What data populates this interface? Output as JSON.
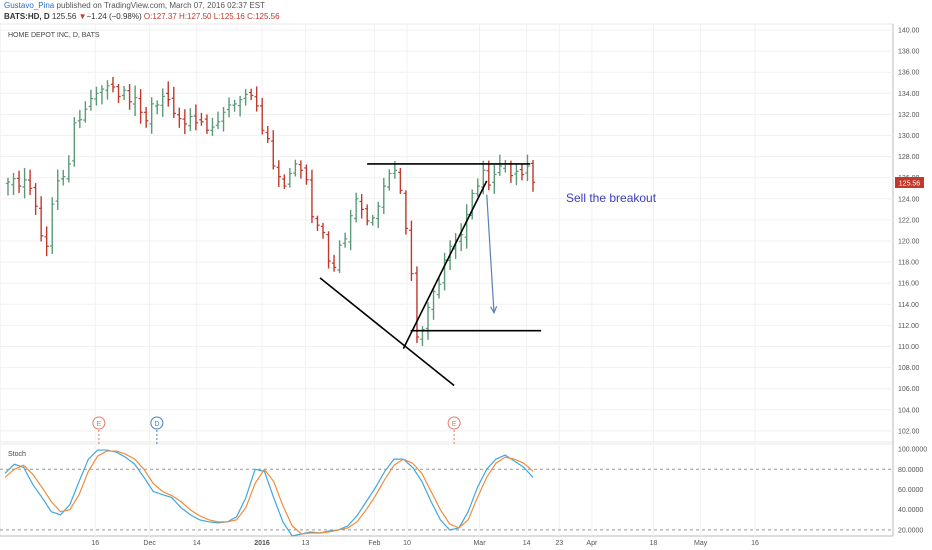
{
  "header": {
    "author": "Gustavo_Pina",
    "published": "published on TradingView.com, March 07, 2016 02:37 EST",
    "symbol": "BATS:HD, D",
    "last": "125.56",
    "change_arrow": "▼",
    "change": "−1.24 (−0.98%)",
    "ohlc": [
      "O:127.37",
      "H:127.50",
      "L:125.16",
      "C:125.56"
    ]
  },
  "instrument_title": "HOME DEPOT INC, D, BATS",
  "stoch_title": "Stoch",
  "annotation": "Sell the breakout",
  "price_badge": "125.56",
  "event_markers": [
    "E",
    "D",
    "E"
  ],
  "colors": {
    "up": "#5a9a78",
    "down": "#c0392b",
    "k_line": "#3fa7e0",
    "d_line": "#f08c3a",
    "drawing": "#000000",
    "arrow": "#5d7fb5",
    "annotation": "#3d3dbf",
    "badge": "#c0392b"
  },
  "chart_data": [
    {
      "type": "ohlc",
      "y_axis_ticks": [
        "140.00",
        "138.00",
        "136.00",
        "134.00",
        "132.00",
        "130.00",
        "128.00",
        "126.00",
        "124.00",
        "122.00",
        "120.00",
        "118.00",
        "116.00",
        "114.00",
        "112.00",
        "110.00",
        "108.00",
        "106.00",
        "104.00",
        "102.00"
      ],
      "x_axis_ticks": [
        "16",
        "Dec",
        "14",
        "2016",
        "13",
        "Feb",
        "10",
        "Mar",
        "14",
        "23",
        "Apr",
        "18",
        "May",
        "16"
      ],
      "ylim": [
        101,
        141
      ],
      "closes": [
        125.6,
        125.9,
        125.2,
        125.8,
        125.0,
        123.3,
        120.5,
        119.5,
        123.5,
        125.7,
        126.1,
        127.3,
        131.2,
        131.5,
        132.5,
        133.5,
        134.0,
        134.4,
        134.7,
        134.6,
        133.7,
        134.3,
        133.2,
        133.6,
        132.2,
        131.4,
        133.0,
        132.9,
        133.7,
        133.4,
        132.1,
        131.6,
        131.1,
        131.8,
        131.2,
        131.3,
        130.5,
        130.8,
        131.3,
        132.2,
        132.9,
        133.0,
        133.4,
        133.9,
        133.8,
        132.8,
        130.5,
        129.7,
        127.1,
        126.1,
        125.2,
        126.4,
        127.3,
        126.7,
        125.8,
        122.3,
        121.5,
        120.8,
        118.1,
        117.5,
        119.6,
        120.2,
        122.4,
        124.0,
        123.0,
        121.9,
        122.2,
        123.3,
        125.2,
        126.4,
        126.7,
        124.8,
        121.2,
        116.9,
        110.9,
        111.6,
        113.7,
        115.2,
        115.9,
        118.2,
        119.5,
        120.1,
        120.6,
        122.5,
        124.5,
        125.2,
        126.7,
        125.3,
        126.3,
        127.1,
        127.3,
        126.2,
        126.6,
        126.3,
        127.1,
        125.56
      ],
      "trend_lines": [
        {
          "label": "resistance",
          "points": [
            [
              "2016-01-30",
              127.3
            ],
            [
              "2016-03-15",
              127.3
            ]
          ]
        },
        {
          "label": "support",
          "points": [
            [
              "2016-02-11",
              111.5
            ],
            [
              "2016-03-18",
              111.5
            ]
          ]
        },
        {
          "label": "rising",
          "points": [
            [
              "2016-02-09",
              109.8
            ],
            [
              "2016-03-03",
              125.7
            ]
          ]
        },
        {
          "label": "falling",
          "points": [
            [
              "2016-01-17",
              116.5
            ],
            [
              "2016-02-23",
              106.3
            ]
          ]
        }
      ],
      "annotation_arrow": {
        "from": [
          "2016-03-03",
          124.4
        ],
        "to": [
          "2016-03-05",
          113.2
        ]
      }
    },
    {
      "type": "line",
      "title": "Stoch",
      "y_axis_ticks": [
        "100.0000",
        "80.0000",
        "60.0000",
        "40.0000",
        "20.0000"
      ],
      "ylim": [
        14,
        104
      ],
      "reference_lines": [
        80,
        20
      ],
      "series": [
        {
          "values": [
            76,
            85,
            82,
            65,
            52,
            38,
            35,
            45,
            68,
            90,
            99,
            99,
            97,
            92,
            85,
            72,
            58,
            55,
            52,
            42,
            35,
            30,
            28,
            27,
            28,
            33,
            52,
            80,
            78,
            52,
            28,
            14,
            16,
            18,
            17,
            19,
            20,
            24,
            34,
            48,
            62,
            78,
            90,
            90,
            82,
            68,
            48,
            30,
            20,
            22,
            38,
            62,
            80,
            90,
            94,
            88,
            82,
            72
          ]
        },
        {
          "values": [
            72,
            80,
            84,
            75,
            62,
            48,
            38,
            40,
            55,
            78,
            93,
            98,
            98,
            95,
            90,
            80,
            66,
            58,
            54,
            48,
            40,
            34,
            30,
            28,
            28,
            30,
            42,
            66,
            80,
            68,
            44,
            24,
            16,
            17,
            17,
            18,
            20,
            22,
            28,
            40,
            54,
            70,
            84,
            90,
            86,
            76,
            58,
            40,
            26,
            22,
            30,
            52,
            72,
            86,
            92,
            90,
            86,
            78
          ]
        }
      ]
    }
  ]
}
